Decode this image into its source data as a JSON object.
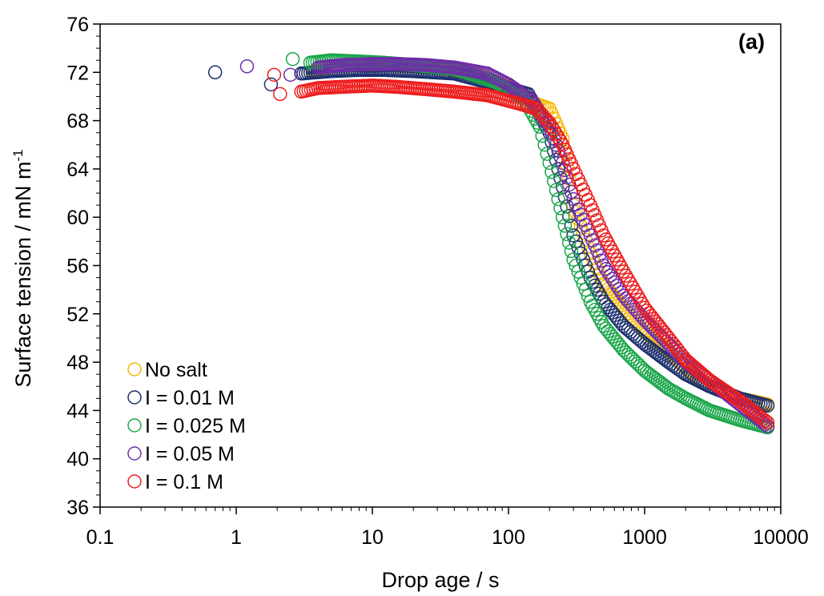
{
  "chart_data": {
    "type": "scatter",
    "panel_label": "(a)",
    "xlabel": "Drop age / s",
    "ylabel_main": "Surface tension / mN m",
    "ylabel_sup": "-1",
    "x_scale": "log",
    "xlim": [
      0.1,
      10000
    ],
    "ylim": [
      36,
      76
    ],
    "x_ticks": [
      0.1,
      1,
      10,
      100,
      1000,
      10000
    ],
    "x_tick_labels": [
      "0.1",
      "1",
      "10",
      "100",
      "1000",
      "10000"
    ],
    "y_ticks": [
      36,
      40,
      44,
      48,
      52,
      56,
      60,
      64,
      68,
      72,
      76
    ],
    "y_tick_labels": [
      "36",
      "40",
      "44",
      "48",
      "52",
      "56",
      "60",
      "64",
      "68",
      "72",
      "76"
    ],
    "grid": false,
    "legend_position": "bottom-left",
    "marker": "open-circle",
    "series": [
      {
        "name": "No salt",
        "color": "#f5b800",
        "x": [
          3.5,
          5,
          8,
          12,
          20,
          35,
          60,
          100,
          150,
          200,
          250,
          300,
          400,
          500,
          700,
          1000,
          1500,
          2000,
          3000,
          5000,
          8000
        ],
        "y": [
          72.0,
          72.5,
          72.6,
          72.6,
          72.5,
          72.3,
          71.8,
          70.8,
          69.5,
          69.0,
          66.5,
          61.0,
          57.0,
          54.5,
          52.5,
          50.5,
          49.0,
          47.5,
          46.0,
          45.0,
          44.5
        ]
      },
      {
        "name": "I = 0.01 M",
        "color": "#1b2f6e",
        "x": [
          0.7,
          1.8,
          3,
          5,
          8,
          12,
          20,
          40,
          80,
          140,
          200,
          250,
          300,
          400,
          500,
          700,
          1000,
          1500,
          2000,
          3000,
          5000,
          8000
        ],
        "y": [
          72.0,
          71.0,
          71.9,
          72.1,
          72.2,
          72.2,
          72.1,
          71.9,
          71.0,
          70.2,
          67.0,
          62.5,
          58.5,
          55.0,
          53.0,
          51.0,
          49.5,
          48.0,
          47.0,
          46.0,
          45.0,
          44.4
        ]
      },
      {
        "name": "I = 0.025 M",
        "color": "#1aa64a",
        "x": [
          2.6,
          3.5,
          5,
          8,
          12,
          20,
          40,
          80,
          130,
          170,
          200,
          250,
          300,
          400,
          500,
          700,
          1000,
          1500,
          2000,
          3000,
          5000,
          8000
        ],
        "y": [
          73.1,
          72.8,
          73.0,
          72.9,
          72.8,
          72.6,
          72.3,
          71.2,
          69.8,
          67.5,
          64.5,
          60.0,
          56.5,
          53.0,
          51.0,
          49.0,
          47.3,
          45.8,
          45.0,
          44.0,
          43.2,
          42.6
        ]
      },
      {
        "name": "I = 0.05 M",
        "color": "#6f2da8",
        "x": [
          1.2,
          2.5,
          4,
          6,
          10,
          15,
          25,
          40,
          70,
          100,
          150,
          200,
          250,
          300,
          400,
          500,
          700,
          1000,
          1500,
          2000,
          3000,
          5000,
          8000
        ],
        "y": [
          72.5,
          71.8,
          72.4,
          72.6,
          72.7,
          72.7,
          72.6,
          72.4,
          71.9,
          71.0,
          69.6,
          67.5,
          64.5,
          61.5,
          58.5,
          56.0,
          53.5,
          51.5,
          49.5,
          48.0,
          46.5,
          44.5,
          42.7
        ]
      },
      {
        "name": "I = 0.1 M",
        "color": "#ee1c1c",
        "x": [
          1.9,
          2.1,
          3,
          4,
          6,
          10,
          15,
          25,
          40,
          70,
          120,
          160,
          200,
          250,
          300,
          400,
          500,
          700,
          1000,
          1500,
          2000,
          3000,
          5000,
          8000
        ],
        "y": [
          71.8,
          70.2,
          70.4,
          70.7,
          70.8,
          70.9,
          70.8,
          70.6,
          70.4,
          70.1,
          69.4,
          69.0,
          67.8,
          66.0,
          64.0,
          61.0,
          58.5,
          55.5,
          52.5,
          50.0,
          48.2,
          46.5,
          44.8,
          43.0
        ]
      }
    ]
  }
}
